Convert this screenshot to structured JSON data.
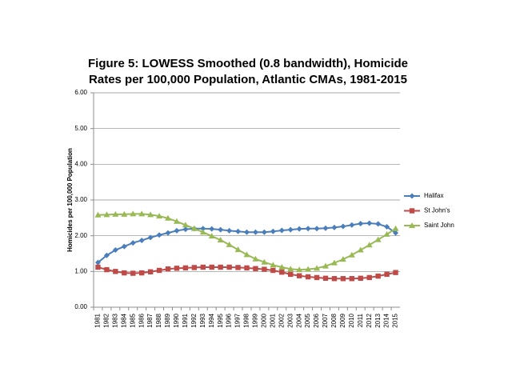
{
  "chart_data": {
    "type": "line",
    "title": [
      "Figure 5: LOWESS Smoothed (0.8 bandwidth), Homicide",
      "Rates per 100,000 Population, Atlantic CMAs, 1981-2015"
    ],
    "y_label": "Homicides per 100,000 Population",
    "categories": [
      "1981",
      "1982",
      "1983",
      "1984",
      "1985",
      "1986",
      "1987",
      "1988",
      "1989",
      "1990",
      "1991",
      "1992",
      "1993",
      "1994",
      "1995",
      "1996",
      "1997",
      "1998",
      "1999",
      "2000",
      "2001",
      "2002",
      "2003",
      "2004",
      "2005",
      "2006",
      "2007",
      "2008",
      "2009",
      "2010",
      "2011",
      "2012",
      "2013",
      "2014",
      "2015"
    ],
    "series": [
      {
        "name": "Halifax",
        "color": "#4a7ebb",
        "marker": "diamond",
        "values": [
          1.25,
          1.45,
          1.6,
          1.7,
          1.8,
          1.87,
          1.95,
          2.02,
          2.08,
          2.14,
          2.18,
          2.2,
          2.2,
          2.19,
          2.17,
          2.14,
          2.12,
          2.1,
          2.1,
          2.1,
          2.12,
          2.15,
          2.17,
          2.19,
          2.2,
          2.2,
          2.21,
          2.23,
          2.26,
          2.3,
          2.34,
          2.35,
          2.33,
          2.25,
          2.08
        ]
      },
      {
        "name": "St John's",
        "color": "#be4b48",
        "marker": "square",
        "values": [
          1.12,
          1.05,
          1.0,
          0.96,
          0.95,
          0.96,
          0.99,
          1.03,
          1.07,
          1.09,
          1.1,
          1.11,
          1.12,
          1.12,
          1.12,
          1.12,
          1.11,
          1.1,
          1.08,
          1.06,
          1.03,
          0.98,
          0.92,
          0.88,
          0.85,
          0.83,
          0.81,
          0.8,
          0.8,
          0.8,
          0.81,
          0.83,
          0.87,
          0.92,
          0.97
        ]
      },
      {
        "name": "Saint John",
        "color": "#98b954",
        "marker": "triangle",
        "values": [
          2.58,
          2.59,
          2.6,
          2.6,
          2.61,
          2.61,
          2.59,
          2.55,
          2.49,
          2.4,
          2.3,
          2.2,
          2.1,
          1.99,
          1.88,
          1.75,
          1.61,
          1.47,
          1.35,
          1.26,
          1.18,
          1.12,
          1.07,
          1.05,
          1.06,
          1.09,
          1.15,
          1.24,
          1.34,
          1.46,
          1.6,
          1.74,
          1.89,
          2.04,
          2.2
        ]
      }
    ],
    "ylim": [
      0,
      6
    ],
    "yticks": [
      {
        "value": 0,
        "label": "0.00"
      },
      {
        "value": 1,
        "label": "1.00"
      },
      {
        "value": 2,
        "label": "2.00"
      },
      {
        "value": 3,
        "label": "3.00"
      },
      {
        "value": 4,
        "label": "4.00"
      },
      {
        "value": 5,
        "label": "5.00"
      },
      {
        "value": 6,
        "label": "6.00"
      }
    ],
    "grid": true,
    "legend": "right"
  }
}
